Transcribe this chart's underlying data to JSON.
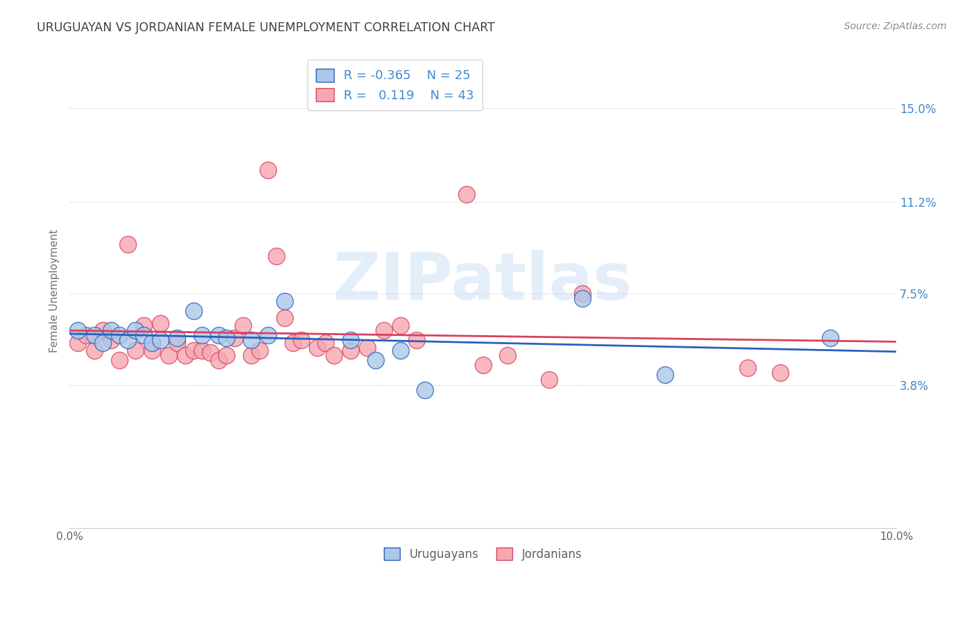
{
  "title": "URUGUAYAN VS JORDANIAN FEMALE UNEMPLOYMENT CORRELATION CHART",
  "source": "Source: ZipAtlas.com",
  "ylabel": "Female Unemployment",
  "ytick_labels": [
    "3.8%",
    "7.5%",
    "11.2%",
    "15.0%"
  ],
  "ytick_values": [
    0.038,
    0.075,
    0.112,
    0.15
  ],
  "xlim": [
    0.0,
    0.1
  ],
  "ylim": [
    -0.02,
    0.172
  ],
  "uruguayan_color": "#aac8e8",
  "jordanian_color": "#f5a8b0",
  "uruguayan_line_color": "#2b5fbe",
  "jordanian_line_color": "#d94060",
  "legend_R_uruguayan": "-0.365",
  "legend_N_uruguayan": "25",
  "legend_R_jordanian": "0.119",
  "legend_N_jordanian": "43",
  "watermark": "ZIPatlas",
  "uruguayan_x": [
    0.001,
    0.003,
    0.004,
    0.005,
    0.006,
    0.007,
    0.008,
    0.009,
    0.01,
    0.011,
    0.013,
    0.015,
    0.016,
    0.018,
    0.019,
    0.022,
    0.024,
    0.026,
    0.034,
    0.037,
    0.04,
    0.043,
    0.062,
    0.072,
    0.092
  ],
  "uruguayan_y": [
    0.06,
    0.058,
    0.055,
    0.06,
    0.058,
    0.056,
    0.06,
    0.058,
    0.055,
    0.056,
    0.057,
    0.068,
    0.058,
    0.058,
    0.057,
    0.056,
    0.058,
    0.072,
    0.056,
    0.048,
    0.052,
    0.036,
    0.073,
    0.042,
    0.057
  ],
  "jordanian_x": [
    0.001,
    0.002,
    0.003,
    0.004,
    0.005,
    0.006,
    0.007,
    0.008,
    0.009,
    0.01,
    0.011,
    0.012,
    0.013,
    0.014,
    0.015,
    0.016,
    0.017,
    0.018,
    0.019,
    0.02,
    0.021,
    0.022,
    0.023,
    0.024,
    0.025,
    0.026,
    0.027,
    0.028,
    0.03,
    0.031,
    0.032,
    0.034,
    0.036,
    0.038,
    0.04,
    0.042,
    0.048,
    0.05,
    0.053,
    0.058,
    0.062,
    0.082,
    0.086
  ],
  "jordanian_y": [
    0.055,
    0.058,
    0.052,
    0.06,
    0.056,
    0.048,
    0.095,
    0.052,
    0.062,
    0.052,
    0.063,
    0.05,
    0.055,
    0.05,
    0.052,
    0.052,
    0.051,
    0.048,
    0.05,
    0.057,
    0.062,
    0.05,
    0.052,
    0.125,
    0.09,
    0.065,
    0.055,
    0.056,
    0.053,
    0.055,
    0.05,
    0.052,
    0.053,
    0.06,
    0.062,
    0.056,
    0.115,
    0.046,
    0.05,
    0.04,
    0.075,
    0.045,
    0.043
  ],
  "grid_color": "#e0e0e0",
  "background_color": "#ffffff",
  "title_color": "#404040",
  "ytick_color": "#4488cc"
}
